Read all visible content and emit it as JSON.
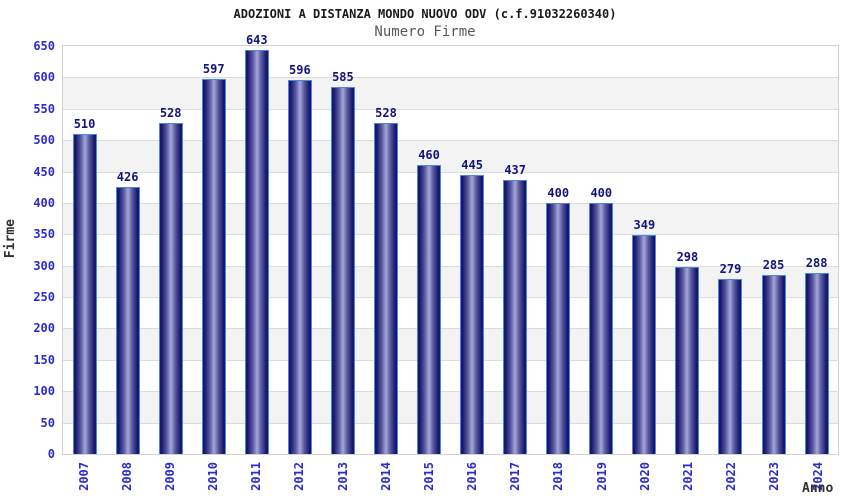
{
  "chart_data": {
    "type": "bar",
    "title": "ADOZIONI A DISTANZA MONDO NUOVO ODV (c.f.91032260340)",
    "subtitle": "Numero Firme",
    "xlabel": "Anno",
    "ylabel": "Firme",
    "categories": [
      "2007",
      "2008",
      "2009",
      "2010",
      "2011",
      "2012",
      "2013",
      "2014",
      "2015",
      "2016",
      "2017",
      "2018",
      "2019",
      "2020",
      "2021",
      "2022",
      "2023",
      "2024"
    ],
    "values": [
      510,
      426,
      528,
      597,
      643,
      596,
      585,
      528,
      460,
      445,
      437,
      400,
      400,
      349,
      298,
      279,
      285,
      288
    ],
    "ylim": [
      0,
      650
    ],
    "ytick_step": 50,
    "grid": true,
    "legend": false,
    "band_pattern": "alternating white/gray stripes per 50 units",
    "colors": {
      "title_text": "#1a1a1a",
      "subtitle_text": "#5a5a5a",
      "axis_label_text": "#303030",
      "tick_text": "#2b2bd0",
      "value_text": "#14147c",
      "bar_dark": "#17176c",
      "bar_mid": "#56569e",
      "bar_light": "#a6a6d8",
      "bar_outline": "#4b87e2",
      "band_alt": "#f3f3f3",
      "gridline": "#dcdcdc",
      "plot_border": "#d2d2d2"
    }
  }
}
